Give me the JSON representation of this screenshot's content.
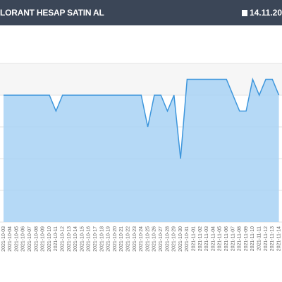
{
  "header": {
    "title": "LORANT HESAP SATIN AL",
    "date": "14.11.20"
  },
  "chart_data": {
    "type": "area",
    "color": "#a8d2f5",
    "ylim": [
      0,
      5
    ],
    "grid": true,
    "categories": [
      "2021-10-03",
      "2021-10-04",
      "2021-10-05",
      "2021-10-06",
      "2021-10-07",
      "2021-10-08",
      "2021-10-09",
      "2021-10-10",
      "2021-10-11",
      "2021-10-12",
      "2021-10-13",
      "2021-10-14",
      "2021-10-15",
      "2021-10-16",
      "2021-10-17",
      "2021-10-18",
      "2021-10-19",
      "2021-10-20",
      "2021-10-21",
      "2021-10-22",
      "2021-10-23",
      "2021-10-24",
      "2021-10-25",
      "2021-10-26",
      "2021-10-27",
      "2021-10-28",
      "2021-10-29",
      "2021-10-30",
      "2021-10-31",
      "2021-11-01",
      "2021-11-02",
      "2021-11-03",
      "2021-11-04",
      "2021-11-05",
      "2021-11-06",
      "2021-11-07",
      "2021-11-08",
      "2021-11-09",
      "2021-11-10",
      "2021-11-11",
      "2021-11-12",
      "2021-11-13",
      "2021-11-14"
    ],
    "values": [
      4,
      4,
      4,
      4,
      4,
      4,
      4,
      4,
      3.5,
      4,
      4,
      4,
      4,
      4,
      4,
      4,
      4,
      4,
      4,
      4,
      4,
      4,
      3,
      4,
      4,
      3.5,
      4,
      2,
      4.5,
      4.5,
      4.5,
      4.5,
      4.5,
      4.5,
      4.5,
      4,
      3.5,
      3.5,
      4.5,
      4,
      4.5,
      4.5,
      4
    ]
  }
}
